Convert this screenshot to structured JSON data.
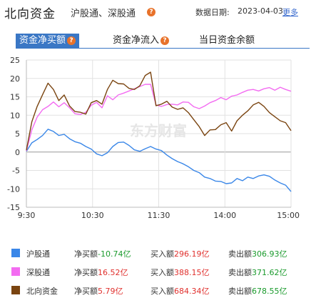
{
  "header": {
    "title": "北向资金",
    "subtitle": "沪股通、深股通",
    "date_label": "数据日期:",
    "date": "2023-04-03",
    "more": "更多"
  },
  "tabs": [
    {
      "label": "资金净买额",
      "active": true,
      "has_help": true
    },
    {
      "label": "资金净流入",
      "active": false,
      "has_help": true
    },
    {
      "label": "当日资金余额",
      "active": false,
      "has_help": false
    }
  ],
  "chart_data": {
    "type": "line",
    "watermark": "东方财富",
    "y_ticks": [
      "25",
      "20",
      "15",
      "10",
      "5",
      "0",
      "-5",
      "-10",
      "-15"
    ],
    "ylim": [
      -15,
      25
    ],
    "x_ticks": [
      "9:30",
      "10:30",
      "11:30",
      "14:00",
      "15:00"
    ],
    "grid": true,
    "series": [
      {
        "name": "沪股通",
        "color": "#3a87e8",
        "values": [
          0.2,
          2.5,
          3.4,
          4.5,
          6.2,
          5.6,
          4.5,
          4.8,
          3.6,
          2.8,
          2.4,
          1.5,
          0.8,
          -0.5,
          -1.0,
          -0.2,
          1.5,
          2.6,
          2.7,
          1.8,
          0.6,
          0.2,
          0.9,
          1.5,
          0.8,
          0.4,
          -0.8,
          -1.8,
          -2.6,
          -3.2,
          -4.0,
          -5.0,
          -5.6,
          -6.8,
          -7.2,
          -7.9,
          -8.0,
          -8.6,
          -8.4,
          -7.2,
          -7.8,
          -6.8,
          -7.2,
          -6.5,
          -6.2,
          -6.6,
          -7.6,
          -8.4,
          -9.0,
          -10.74
        ]
      },
      {
        "name": "深股通",
        "color": "#f36cf1",
        "values": [
          0.3,
          6.0,
          9.5,
          11.5,
          12.4,
          13.6,
          12.3,
          13.4,
          12.0,
          10.4,
          10.2,
          10.8,
          12.7,
          13.5,
          12.0,
          15.3,
          14.2,
          15.5,
          16.0,
          16.6,
          17.2,
          17.8,
          18.4,
          18.4,
          12.8,
          12.4,
          12.9,
          13.0,
          12.8,
          13.6,
          13.5,
          12.3,
          11.8,
          12.5,
          13.4,
          14.0,
          14.8,
          14.2,
          15.2,
          15.5,
          16.2,
          16.8,
          17.0,
          16.6,
          17.2,
          17.5,
          16.8,
          17.6,
          17.0,
          16.52
        ]
      },
      {
        "name": "北向资金",
        "color": "#7a4410",
        "values": [
          0.5,
          8.2,
          12.4,
          15.6,
          18.7,
          17.0,
          14.0,
          15.5,
          12.5,
          11.0,
          10.8,
          10.3,
          13.4,
          14.0,
          13.0,
          17.0,
          19.5,
          18.6,
          18.5,
          17.3,
          17.0,
          18.0,
          20.8,
          21.7,
          12.6,
          13.0,
          13.8,
          12.2,
          11.6,
          12.0,
          10.7,
          8.8,
          6.9,
          4.5,
          6.0,
          6.1,
          7.4,
          8.0,
          5.7,
          8.5,
          10.0,
          11.2,
          12.8,
          13.5,
          12.4,
          10.7,
          9.6,
          8.5,
          8.0,
          5.79
        ]
      }
    ]
  },
  "legend": [
    {
      "name": "沪股通",
      "color": "#3a87e8",
      "net_label": "净买额",
      "net": "-10.74亿",
      "net_class": "green",
      "buy_label": "买入额",
      "buy": "296.19亿",
      "sell_label": "卖出额",
      "sell": "306.93亿"
    },
    {
      "name": "深股通",
      "color": "#f36cf1",
      "net_label": "净买额",
      "net": "16.52亿",
      "net_class": "red",
      "buy_label": "买入额",
      "buy": "388.15亿",
      "sell_label": "卖出额",
      "sell": "371.62亿"
    },
    {
      "name": "北向资金",
      "color": "#7a4410",
      "net_label": "净买额",
      "net": "5.79亿",
      "net_class": "red",
      "buy_label": "买入额",
      "buy": "684.34亿",
      "sell_label": "卖出额",
      "sell": "678.55亿"
    }
  ]
}
